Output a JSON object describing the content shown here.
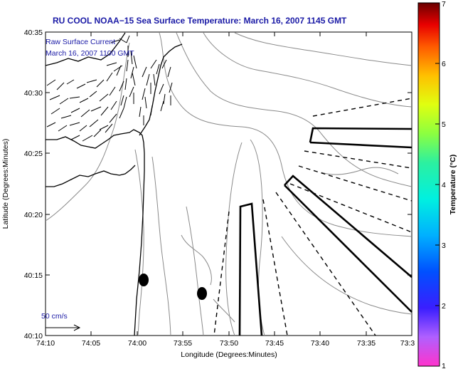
{
  "title": "RU COOL  NOAA−15  Sea Surface Temperature:  March 16, 2007 1145 GMT",
  "overlay": {
    "line1": "Raw Surface Current",
    "line2": "March 16, 2007 1100 GMT"
  },
  "scale": {
    "label": "50 cm/s"
  },
  "axes": {
    "xlabel": "Longitude (Degrees:Minutes)",
    "ylabel": "Latitude (Degrees:Minutes)",
    "xticks": [
      "74:10",
      "74:05",
      "74:00",
      "73:55",
      "73:50",
      "73:45",
      "73:40",
      "73:35",
      "73:3"
    ],
    "yticks": [
      "40:35",
      "40:30",
      "40:25",
      "40:20",
      "40:15",
      "40:10"
    ]
  },
  "colorbar": {
    "label": "Temperature (°C)",
    "ticks": [
      "7",
      "6",
      "5",
      "4",
      "3",
      "2",
      "1"
    ],
    "min": 1,
    "max": 7
  },
  "colors": {
    "title": "#1a1aa6",
    "bathymetry": "#8a8a8a"
  }
}
